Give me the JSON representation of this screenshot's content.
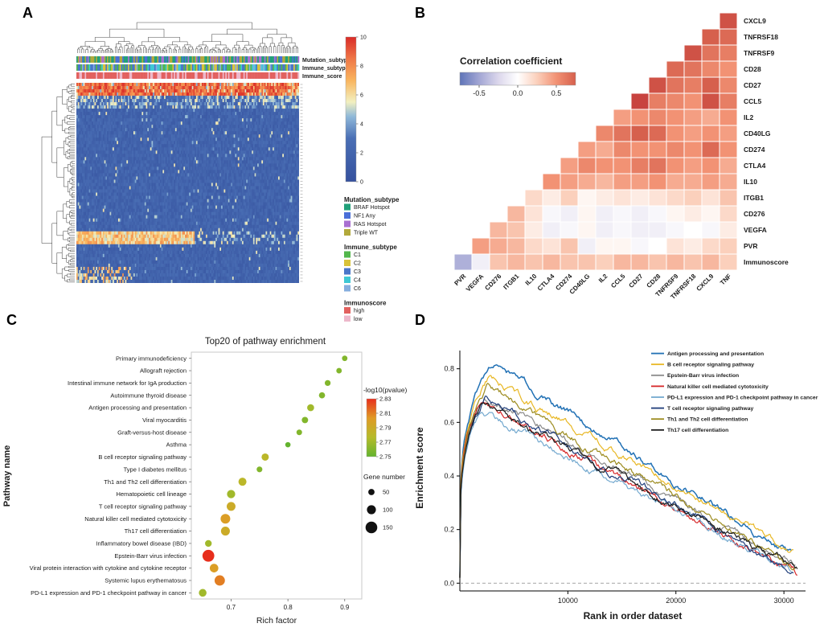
{
  "panels": {
    "a": "A",
    "b": "B",
    "c": "C",
    "d": "D"
  },
  "chart_data": [
    {
      "panel": "A",
      "type": "heatmap",
      "name": "clustered-expression-heatmap",
      "colorbar_ticks": [
        0,
        2,
        4,
        6,
        8,
        10
      ],
      "scale_stops": [
        {
          "v": 0,
          "c": "#35519e"
        },
        {
          "v": 3,
          "c": "#4a6fb5"
        },
        {
          "v": 4.5,
          "c": "#8fb8d9"
        },
        {
          "v": 5.5,
          "c": "#f2f0c0"
        },
        {
          "v": 7,
          "c": "#f9b55e"
        },
        {
          "v": 8.5,
          "c": "#ef7747"
        },
        {
          "v": 10,
          "c": "#d92b27"
        }
      ],
      "annotation_tracks": [
        {
          "label": "Mutation_subtype"
        },
        {
          "label": "Immune_subtype"
        },
        {
          "label": "Immune_score"
        }
      ],
      "legends": [
        {
          "title": "Mutation_subtype",
          "items": [
            {
              "label": "BRAF Hotspot",
              "color": "#21a079"
            },
            {
              "label": "NF1 Any",
              "color": "#4a6fd8"
            },
            {
              "label": "RAS Hotspot",
              "color": "#a96fd1"
            },
            {
              "label": "Triple WT",
              "color": "#b2a93b"
            }
          ]
        },
        {
          "title": "Immune_subtype",
          "items": [
            {
              "label": "C1",
              "color": "#53b74c"
            },
            {
              "label": "C2",
              "color": "#d8c23a"
            },
            {
              "label": "C3",
              "color": "#4a76c9"
            },
            {
              "label": "C4",
              "color": "#3fc8d4"
            },
            {
              "label": "C6",
              "color": "#85aede"
            }
          ]
        },
        {
          "title": "Immunoscore",
          "items": [
            {
              "label": "high",
              "color": "#e2615f"
            },
            {
              "label": "low",
              "color": "#edb8cb"
            }
          ]
        }
      ],
      "layout": {
        "n_cols": 160,
        "n_rows": 62
      }
    },
    {
      "panel": "B",
      "type": "heatmap",
      "name": "immune-gene-correlation-triangle",
      "legend_title": "Correlation coefficient",
      "legend_ticks": [
        "-0.5",
        "0.0",
        "0.5"
      ],
      "row_labels": [
        "CXCL9",
        "TNFRSF18",
        "TNFRSF9",
        "CD28",
        "CD27",
        "CCL5",
        "IL2",
        "CD40LG",
        "CD274",
        "CTLA4",
        "IL10",
        "ITGB1",
        "CD276",
        "VEGFA",
        "PVR",
        "Immunoscore"
      ],
      "col_labels": [
        "PVR",
        "VEGFA",
        "CD276",
        "ITGB1",
        "IL10",
        "CTLA4",
        "CD274",
        "CD40LG",
        "IL2",
        "CCL5",
        "CD27",
        "CD28",
        "TNFRSF9",
        "TNFRSF18",
        "CXCL9",
        "TNF"
      ],
      "values": [
        [
          0.8
        ],
        [
          0.75,
          0.7
        ],
        [
          0.8,
          0.65,
          0.6
        ],
        [
          0.7,
          0.65,
          0.55,
          0.5
        ],
        [
          0.8,
          0.65,
          0.6,
          0.75,
          0.55
        ],
        [
          0.85,
          0.6,
          0.55,
          0.5,
          0.8,
          0.6
        ],
        [
          0.45,
          0.5,
          0.55,
          0.5,
          0.45,
          0.4,
          0.5
        ],
        [
          0.55,
          0.65,
          0.75,
          0.7,
          0.5,
          0.45,
          0.5,
          0.45
        ],
        [
          0.45,
          0.4,
          0.55,
          0.5,
          0.5,
          0.55,
          0.5,
          0.7,
          0.5
        ],
        [
          0.45,
          0.55,
          0.5,
          0.5,
          0.6,
          0.65,
          0.5,
          0.45,
          0.5,
          0.4
        ],
        [
          0.5,
          0.45,
          0.4,
          0.35,
          0.45,
          0.45,
          0.5,
          0.4,
          0.4,
          0.45,
          0.4
        ],
        [
          0.2,
          0.1,
          0.25,
          0.05,
          0.1,
          0.15,
          0.1,
          0.15,
          0.2,
          0.25,
          0.15,
          0.3
        ],
        [
          0.35,
          0.15,
          -0.05,
          -0.1,
          0.05,
          -0.1,
          -0.05,
          -0.1,
          -0.05,
          0.05,
          0.1,
          0.05,
          0.2
        ],
        [
          0.35,
          0.3,
          0.1,
          -0.1,
          -0.05,
          0.05,
          -0.1,
          -0.05,
          -0.1,
          -0.1,
          -0.05,
          0.0,
          -0.05,
          0.1
        ],
        [
          0.45,
          0.4,
          0.35,
          0.2,
          0.15,
          0.3,
          -0.1,
          0.05,
          0.05,
          -0.05,
          0.0,
          0.15,
          0.1,
          0.2,
          0.25
        ],
        [
          -0.45,
          -0.1,
          0.3,
          0.35,
          0.3,
          0.35,
          0.3,
          0.3,
          0.25,
          0.35,
          0.35,
          0.3,
          0.35,
          0.3,
          0.35,
          0.25
        ]
      ]
    },
    {
      "panel": "C",
      "type": "scatter",
      "title": "Top20 of pathway enrichment",
      "xlabel": "Rich factor",
      "ylabel": "Pathway name",
      "x_ticks": [
        "0.7",
        "0.8",
        "0.9"
      ],
      "x_range": [
        0.63,
        0.93
      ],
      "color_legend": {
        "title": "-log10(pvalue)",
        "ticks": [
          "2.83",
          "2.81",
          "2.79",
          "2.77",
          "2.75"
        ],
        "range": [
          2.75,
          2.83
        ],
        "stops": [
          "#63b32e",
          "#b5bb2a",
          "#e09b26",
          "#e72e1c"
        ]
      },
      "size_legend": {
        "title": "Gene number",
        "items": [
          50,
          100,
          150
        ]
      },
      "points": [
        {
          "pathway": "Primary immunodeficiency",
          "rich_factor": 0.9,
          "gene_number": 35,
          "neglog10_pvalue": 2.76
        },
        {
          "pathway": "Allograft rejection",
          "rich_factor": 0.89,
          "gene_number": 36,
          "neglog10_pvalue": 2.76
        },
        {
          "pathway": "Intestinal immune network for IgA production",
          "rich_factor": 0.87,
          "gene_number": 42,
          "neglog10_pvalue": 2.76
        },
        {
          "pathway": "Autoimmune thyroid disease",
          "rich_factor": 0.86,
          "gene_number": 48,
          "neglog10_pvalue": 2.76
        },
        {
          "pathway": "Antigen processing and presentation",
          "rich_factor": 0.84,
          "gene_number": 62,
          "neglog10_pvalue": 2.77
        },
        {
          "pathway": "Viral myocarditis",
          "rich_factor": 0.83,
          "gene_number": 52,
          "neglog10_pvalue": 2.76
        },
        {
          "pathway": "Graft-versus-host disease",
          "rich_factor": 0.82,
          "gene_number": 38,
          "neglog10_pvalue": 2.76
        },
        {
          "pathway": "Asthma",
          "rich_factor": 0.8,
          "gene_number": 32,
          "neglog10_pvalue": 2.75
        },
        {
          "pathway": "B cell receptor signaling pathway",
          "rich_factor": 0.76,
          "gene_number": 68,
          "neglog10_pvalue": 2.78
        },
        {
          "pathway": "Type I diabetes mellitus",
          "rich_factor": 0.75,
          "gene_number": 40,
          "neglog10_pvalue": 2.76
        },
        {
          "pathway": "Th1 and Th2 cell differentiation",
          "rich_factor": 0.72,
          "gene_number": 82,
          "neglog10_pvalue": 2.78
        },
        {
          "pathway": "Hematopoietic cell lineage",
          "rich_factor": 0.7,
          "gene_number": 86,
          "neglog10_pvalue": 2.77
        },
        {
          "pathway": "T cell receptor signaling pathway",
          "rich_factor": 0.7,
          "gene_number": 96,
          "neglog10_pvalue": 2.79
        },
        {
          "pathway": "Natural killer cell mediated cytotoxicity",
          "rich_factor": 0.69,
          "gene_number": 112,
          "neglog10_pvalue": 2.8
        },
        {
          "pathway": "Th17 cell differentiation",
          "rich_factor": 0.69,
          "gene_number": 98,
          "neglog10_pvalue": 2.79
        },
        {
          "pathway": "Inflammatory bowel disease (IBD)",
          "rich_factor": 0.66,
          "gene_number": 58,
          "neglog10_pvalue": 2.77
        },
        {
          "pathway": "Epstein-Barr virus infection",
          "rich_factor": 0.66,
          "gene_number": 152,
          "neglog10_pvalue": 2.83
        },
        {
          "pathway": "Viral protein interaction with cytokine and cytokine receptor",
          "rich_factor": 0.67,
          "gene_number": 92,
          "neglog10_pvalue": 2.8
        },
        {
          "pathway": "Systemic lupus erythematosus",
          "rich_factor": 0.68,
          "gene_number": 124,
          "neglog10_pvalue": 2.81
        },
        {
          "pathway": "PD-L1 expression and PD-1 checkpoint pathway in cancer",
          "rich_factor": 0.65,
          "gene_number": 76,
          "neglog10_pvalue": 2.77
        }
      ]
    },
    {
      "panel": "D",
      "type": "line",
      "name": "gsea-enrichment-curves",
      "xlabel": "Rank in order dataset",
      "ylabel": "Enrichment score",
      "x_ticks": [
        10000,
        20000,
        30000
      ],
      "y_ticks": [
        "0.0",
        "0.2",
        "0.4",
        "0.6",
        "0.8"
      ],
      "x_max": 32000,
      "series": [
        {
          "name": "Antigen processing and presentation",
          "color": "#2171b5",
          "peak": 0.82,
          "peak_x": 3000,
          "end": 0.1
        },
        {
          "name": "B cell receptor signaling pathway",
          "color": "#e8b723",
          "peak": 0.76,
          "peak_x": 2600,
          "end": 0.12
        },
        {
          "name": "Epstein-Barr virus infection",
          "color": "#8a8a8a",
          "peak": 0.7,
          "peak_x": 2200,
          "end": 0.07
        },
        {
          "name": "Natural killer cell mediated cytotoxicity",
          "color": "#d62728",
          "peak": 0.68,
          "peak_x": 1800,
          "end": 0.03
        },
        {
          "name": "PD-L1 expression and PD-1 checkpoint pathway in cancer",
          "color": "#74a9cf",
          "peak": 0.64,
          "peak_x": 2000,
          "end": 0.05
        },
        {
          "name": "T cell receptor signaling pathway",
          "color": "#1f3d7a",
          "peak": 0.69,
          "peak_x": 2300,
          "end": 0.04
        },
        {
          "name": "Th1 and Th2 cell differentiation",
          "color": "#9c8b1e",
          "peak": 0.73,
          "peak_x": 2500,
          "end": 0.06
        },
        {
          "name": "Th17 cell differentiation",
          "color": "#1a1a1a",
          "peak": 0.67,
          "peak_x": 2100,
          "end": 0.05
        }
      ]
    }
  ]
}
